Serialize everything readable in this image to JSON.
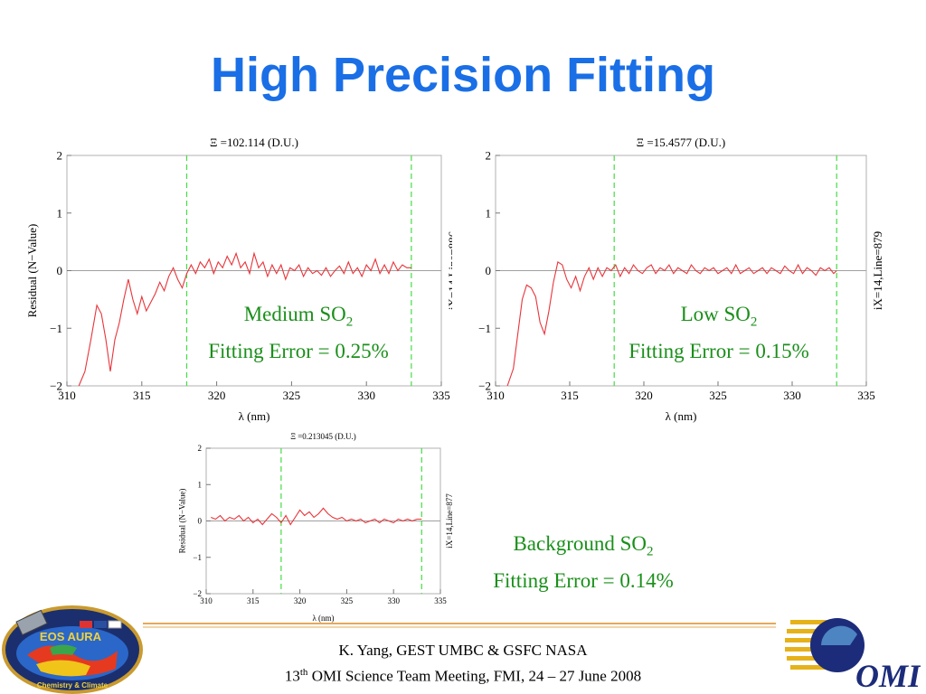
{
  "title": "High Precision Fitting",
  "charts": [
    {
      "name": "medium",
      "title": "Ξ =102.114 (D.U.)",
      "ylabel": "Residual (N−Value)",
      "xlabel": "λ (nm)",
      "right_label": "iX=14,Line=886"
    },
    {
      "name": "low",
      "title": "Ξ =15.4577 (D.U.)",
      "ylabel": "",
      "xlabel": "λ (nm)",
      "right_label": "iX=14,Line=879"
    },
    {
      "name": "background",
      "title": "Ξ =0.213045 (D.U.)",
      "ylabel": "Residual (N−Value)",
      "xlabel": "λ (nm)",
      "right_label": "iX=14,Line=877"
    }
  ],
  "captions": [
    {
      "line1": "Medium SO",
      "sub": "2",
      "line2": "Fitting Error = 0.25%"
    },
    {
      "line1": "Low SO",
      "sub": "2",
      "line2": "Fitting Error = 0.15%"
    },
    {
      "line1": "Background SO",
      "sub": "2",
      "line2": "Fitting Error = 0.14%"
    }
  ],
  "footer": {
    "line1": "K. Yang, GEST UMBC  & GSFC NASA",
    "line2_pre": "13",
    "line2_sup": "th",
    "line2_post": " OMI Science Team Meeting, FMI, 24 – 27 June 2008"
  },
  "logos": {
    "left_text_top": "EOS AURA",
    "left_text_bottom": "Chemistry & Climate",
    "right_text": "OMI"
  },
  "colors": {
    "title": "#1a6fe6",
    "caption": "#1a8f1a",
    "series": "#e8343a",
    "fit_window": "#44dd44"
  },
  "chart_data": [
    {
      "type": "line",
      "title": "Ξ =102.114 (D.U.)",
      "xlabel": "λ (nm)",
      "ylabel": "Residual (N−Value)",
      "xlim": [
        310,
        335
      ],
      "ylim": [
        -2,
        2
      ],
      "xticks": [
        310,
        315,
        320,
        325,
        330,
        335
      ],
      "yticks": [
        -2,
        -1,
        0,
        1,
        2
      ],
      "vlines": [
        318,
        333
      ],
      "series": [
        {
          "x": [
            310.8,
            311.2,
            311.6,
            312.0,
            312.3,
            312.6,
            312.9,
            313.2,
            313.5,
            313.8,
            314.1,
            314.4,
            314.7,
            315.0,
            315.3,
            315.6,
            315.9,
            316.2,
            316.5,
            316.8,
            317.1,
            317.4,
            317.7,
            318.0,
            318.3,
            318.6,
            318.9,
            319.2,
            319.5,
            319.8,
            320.1,
            320.4,
            320.7,
            321.0,
            321.3,
            321.6,
            321.9,
            322.2,
            322.5,
            322.8,
            323.1,
            323.4,
            323.7,
            324.0,
            324.3,
            324.6,
            324.9,
            325.2,
            325.5,
            325.8,
            326.1,
            326.4,
            326.7,
            327.0,
            327.3,
            327.6,
            327.9,
            328.2,
            328.5,
            328.8,
            329.1,
            329.4,
            329.7,
            330.0,
            330.3,
            330.6,
            330.9,
            331.2,
            331.5,
            331.8,
            332.1,
            332.4,
            332.7,
            333.0
          ],
          "y": [
            -2.0,
            -1.75,
            -1.2,
            -0.6,
            -0.75,
            -1.2,
            -1.75,
            -1.2,
            -0.9,
            -0.5,
            -0.15,
            -0.5,
            -0.75,
            -0.45,
            -0.7,
            -0.55,
            -0.4,
            -0.2,
            -0.35,
            -0.1,
            0.05,
            -0.15,
            -0.3,
            -0.05,
            0.1,
            -0.05,
            0.15,
            0.05,
            0.2,
            -0.05,
            0.15,
            0.05,
            0.25,
            0.1,
            0.3,
            0.05,
            0.15,
            -0.05,
            0.3,
            0.05,
            0.15,
            -0.1,
            0.1,
            -0.05,
            0.1,
            -0.15,
            0.05,
            0.0,
            0.1,
            -0.1,
            0.05,
            -0.05,
            0.0,
            -0.08,
            0.05,
            -0.1,
            0.0,
            0.08,
            -0.05,
            0.15,
            -0.05,
            0.05,
            -0.1,
            0.1,
            0.0,
            0.2,
            -0.05,
            0.1,
            -0.05,
            0.15,
            0.0,
            0.1,
            0.05,
            0.05
          ]
        }
      ]
    },
    {
      "type": "line",
      "title": "Ξ =15.4577 (D.U.)",
      "xlabel": "λ (nm)",
      "ylabel": "",
      "xlim": [
        310,
        335
      ],
      "ylim": [
        -2,
        2
      ],
      "xticks": [
        310,
        315,
        320,
        325,
        330,
        335
      ],
      "yticks": [
        -2,
        -1,
        0,
        1,
        2
      ],
      "vlines": [
        318,
        333
      ],
      "series": [
        {
          "x": [
            310.8,
            311.2,
            311.5,
            311.8,
            312.1,
            312.4,
            312.7,
            313.0,
            313.3,
            313.6,
            313.9,
            314.2,
            314.5,
            314.8,
            315.1,
            315.4,
            315.7,
            316.0,
            316.3,
            316.6,
            316.9,
            317.2,
            317.5,
            317.8,
            318.1,
            318.4,
            318.7,
            319.0,
            319.3,
            319.6,
            319.9,
            320.2,
            320.5,
            320.8,
            321.1,
            321.4,
            321.7,
            322.0,
            322.3,
            322.6,
            322.9,
            323.2,
            323.5,
            323.8,
            324.1,
            324.4,
            324.7,
            325.0,
            325.3,
            325.6,
            325.9,
            326.2,
            326.5,
            326.8,
            327.1,
            327.4,
            327.7,
            328.0,
            328.3,
            328.6,
            328.9,
            329.2,
            329.5,
            329.8,
            330.1,
            330.4,
            330.7,
            331.0,
            331.3,
            331.6,
            331.9,
            332.2,
            332.5,
            332.8,
            333.0
          ],
          "y": [
            -2.0,
            -1.7,
            -1.1,
            -0.5,
            -0.25,
            -0.3,
            -0.45,
            -0.9,
            -1.1,
            -0.7,
            -0.2,
            0.15,
            0.1,
            -0.15,
            -0.3,
            -0.1,
            -0.35,
            -0.1,
            0.05,
            -0.15,
            0.05,
            -0.1,
            0.05,
            0.0,
            0.1,
            -0.1,
            0.05,
            -0.05,
            0.1,
            0.0,
            -0.05,
            0.05,
            0.1,
            -0.05,
            0.05,
            0.0,
            0.1,
            -0.05,
            0.05,
            0.0,
            -0.05,
            0.1,
            0.0,
            -0.05,
            0.05,
            0.0,
            0.05,
            -0.05,
            0.0,
            0.05,
            -0.05,
            0.1,
            -0.05,
            0.0,
            0.05,
            -0.05,
            0.0,
            0.05,
            -0.05,
            0.05,
            0.0,
            -0.05,
            0.08,
            0.0,
            -0.05,
            0.1,
            -0.05,
            0.05,
            0.0,
            -0.08,
            0.05,
            0.0,
            0.05,
            -0.05,
            0.0
          ]
        }
      ]
    },
    {
      "type": "line",
      "title": "Ξ =0.213045 (D.U.)",
      "xlabel": "λ (nm)",
      "ylabel": "Residual (N−Value)",
      "xlim": [
        310,
        335
      ],
      "ylim": [
        -2,
        2
      ],
      "xticks": [
        310,
        315,
        320,
        325,
        330,
        335
      ],
      "yticks": [
        -2,
        -1,
        0,
        1,
        2
      ],
      "vlines": [
        318,
        333
      ],
      "series": [
        {
          "x": [
            310.5,
            311.0,
            311.5,
            312.0,
            312.5,
            313.0,
            313.5,
            314.0,
            314.5,
            315.0,
            315.5,
            316.0,
            316.5,
            317.0,
            317.5,
            318.0,
            318.5,
            319.0,
            319.5,
            320.0,
            320.5,
            321.0,
            321.5,
            322.0,
            322.5,
            323.0,
            323.5,
            324.0,
            324.5,
            325.0,
            325.5,
            326.0,
            326.5,
            327.0,
            327.5,
            328.0,
            328.5,
            329.0,
            329.5,
            330.0,
            330.5,
            331.0,
            331.5,
            332.0,
            332.5,
            333.0
          ],
          "y": [
            0.1,
            0.05,
            0.15,
            0.0,
            0.1,
            0.05,
            0.15,
            0.0,
            0.1,
            -0.05,
            0.05,
            -0.1,
            0.05,
            0.2,
            0.1,
            -0.05,
            0.15,
            -0.1,
            0.1,
            0.3,
            0.15,
            0.25,
            0.1,
            0.2,
            0.35,
            0.2,
            0.1,
            0.05,
            0.1,
            0.0,
            0.05,
            0.0,
            0.05,
            -0.05,
            0.0,
            0.05,
            -0.05,
            0.05,
            0.0,
            -0.05,
            0.05,
            0.0,
            0.05,
            0.0,
            0.05,
            0.05
          ]
        }
      ]
    }
  ]
}
